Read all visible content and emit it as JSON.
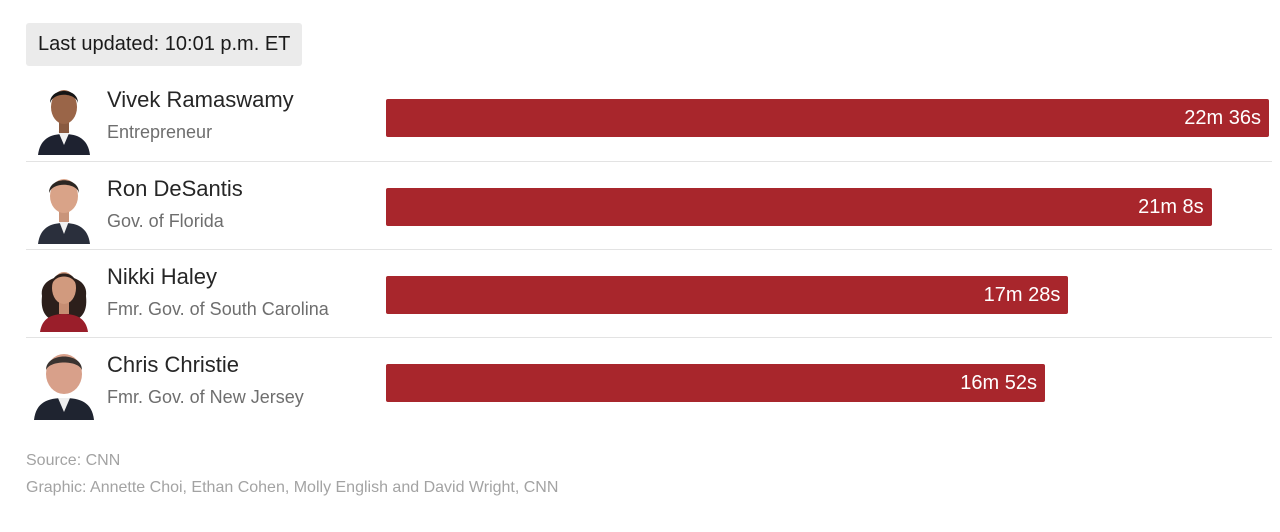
{
  "updated_label": "Last updated: 10:01 p.m. ET",
  "colors": {
    "bar": "#a8262c",
    "bar_label": "#ffffff",
    "name": "#262626",
    "subtitle": "#6e6e6e",
    "footer": "#a3a3a3",
    "updated_bg": "#ebebeb"
  },
  "chart_data": {
    "type": "bar",
    "orientation": "horizontal",
    "title": "",
    "xlabel": "",
    "ylabel": "",
    "unit": "seconds",
    "categories": [
      "Vivek Ramaswamy",
      "Ron DeSantis",
      "Nikki Haley",
      "Chris Christie"
    ],
    "subtitles": [
      "Entrepreneur",
      "Gov. of Florida",
      "Fmr. Gov. of South Carolina",
      "Fmr. Gov. of New Jersey"
    ],
    "values": [
      1356,
      1268,
      1048,
      1012
    ],
    "value_labels": [
      "22m 36s",
      "21m 8s",
      "17m 28s",
      "16m 52s"
    ],
    "xlim": [
      0,
      1356
    ],
    "grid": false,
    "avatars": [
      "portrait-icon",
      "portrait-icon",
      "portrait-icon",
      "portrait-icon"
    ]
  },
  "footer": {
    "source": "Source: CNN",
    "credit": "Graphic: Annette Choi, Ethan Cohen, Molly English and David Wright, CNN"
  }
}
